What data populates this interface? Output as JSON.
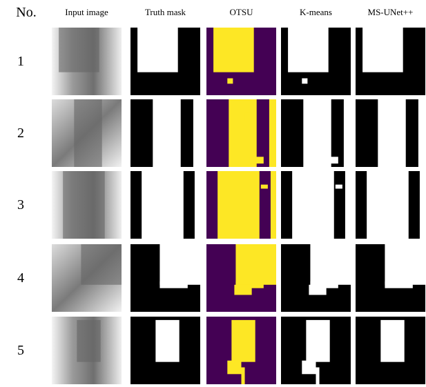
{
  "header": {
    "number": "No.",
    "columns": [
      "Input image",
      "Truth mask",
      "OTSU",
      "K-means",
      "MS-UNet++"
    ]
  },
  "rows": [
    "1",
    "2",
    "3",
    "4",
    "5"
  ]
}
